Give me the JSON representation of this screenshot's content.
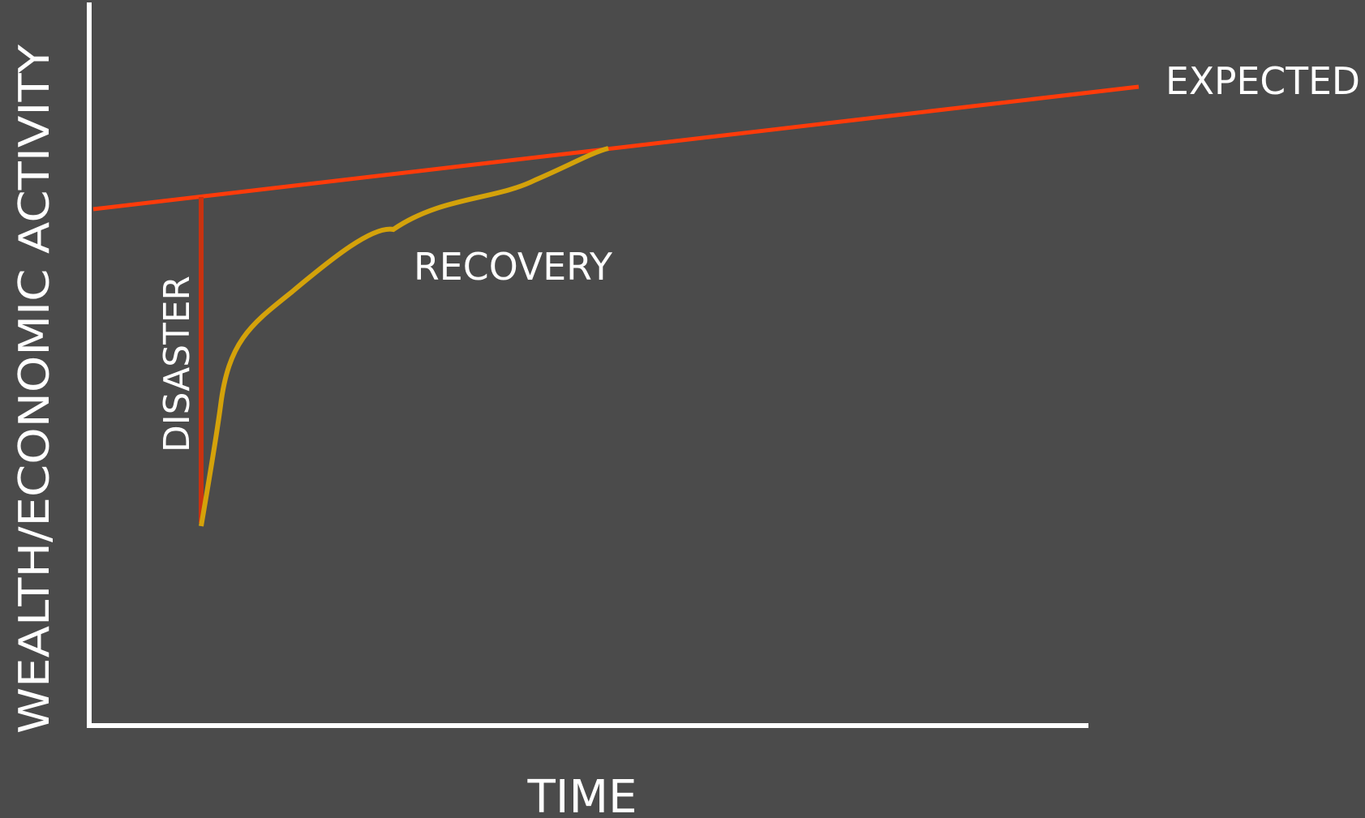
{
  "diagram": {
    "colors": {
      "background": "#4b4b4b",
      "axis": "#ffffff",
      "expected_line": "#ff3b0a",
      "disaster_line": "#c93210",
      "recovery_line": "#d4a20a",
      "text": "#ffffff"
    },
    "labels": {
      "y_axis": "WEALTH/ECONOMIC ACTIVITY",
      "x_axis": "TIME",
      "expected": "EXPECTED",
      "disaster": "DISASTER",
      "recovery": "RECOVERY"
    }
  }
}
